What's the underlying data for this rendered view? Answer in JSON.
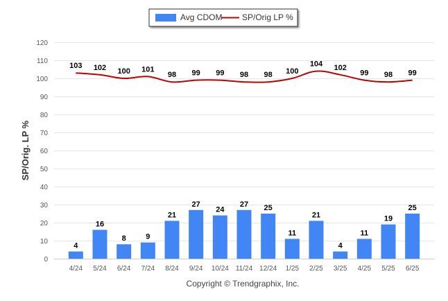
{
  "chart_data": {
    "type": "bar",
    "categories": [
      "4/24",
      "5/24",
      "6/24",
      "7/24",
      "8/24",
      "9/24",
      "10/24",
      "11/24",
      "12/24",
      "1/25",
      "2/25",
      "3/25",
      "4/25",
      "5/25",
      "6/25"
    ],
    "series": [
      {
        "name": "Avg CDOM",
        "type": "bar",
        "color": "#4285f4",
        "values": [
          4,
          16,
          8,
          9,
          21,
          27,
          24,
          27,
          25,
          11,
          21,
          4,
          11,
          19,
          25
        ]
      },
      {
        "name": "SP/Orig LP %",
        "type": "line",
        "color": "#c00000",
        "values": [
          103,
          102,
          100,
          101,
          98,
          99,
          99,
          98,
          98,
          100,
          104,
          102,
          99,
          98,
          99
        ]
      }
    ],
    "ylabel": "SP/Orig. LP %",
    "ylim": [
      0,
      120
    ],
    "yticks": [
      0,
      10,
      20,
      30,
      40,
      50,
      60,
      70,
      80,
      90,
      100,
      110,
      120
    ],
    "grid": true,
    "legend_position": "top-center"
  },
  "credit": "Copyright © Trendgraphix, Inc."
}
